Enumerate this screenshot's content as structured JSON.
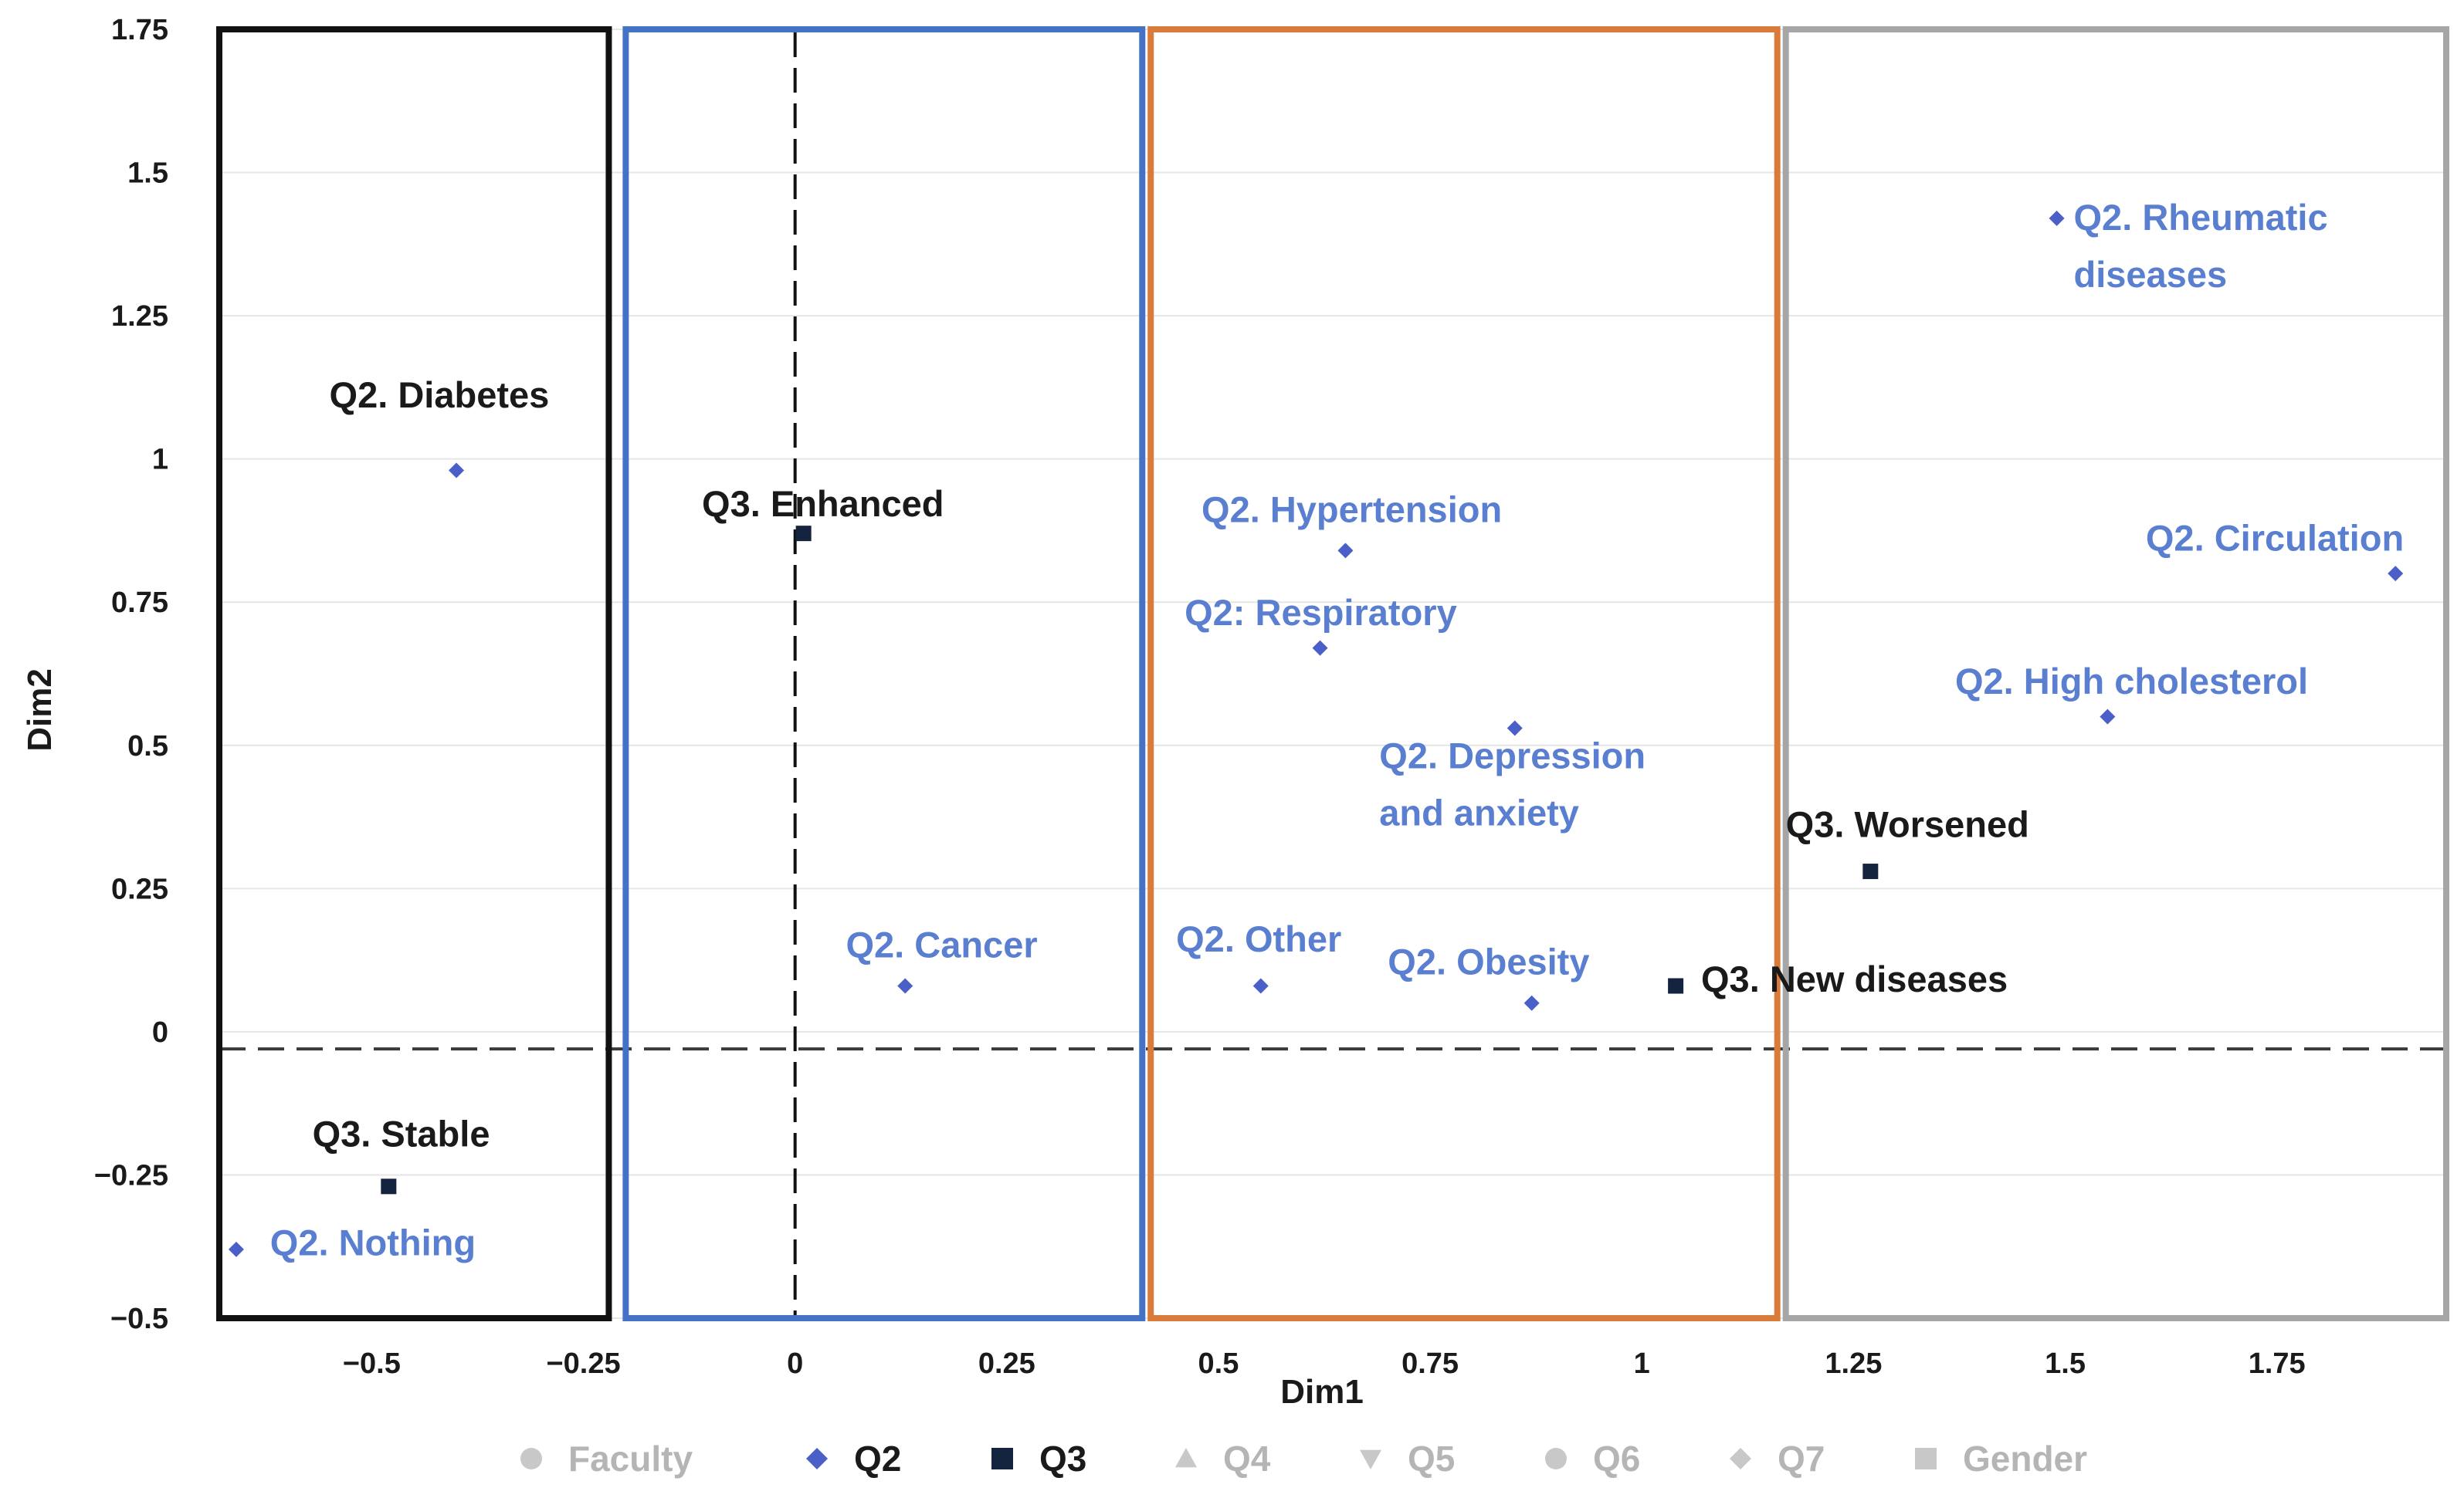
{
  "chart_data": {
    "type": "scatter",
    "title": "",
    "xlabel": "Dim1",
    "ylabel": "Dim2",
    "xlim": [
      -0.68,
      1.95
    ],
    "ylim": [
      -0.5,
      1.75
    ],
    "x_ticks": [
      {
        "value": -0.5,
        "label": "−0.5"
      },
      {
        "value": -0.25,
        "label": "−0.25"
      },
      {
        "value": 0,
        "label": "0"
      },
      {
        "value": 0.25,
        "label": "0.25"
      },
      {
        "value": 0.5,
        "label": "0.5"
      },
      {
        "value": 0.75,
        "label": "0.75"
      },
      {
        "value": 1,
        "label": "1"
      },
      {
        "value": 1.25,
        "label": "1.25"
      },
      {
        "value": 1.5,
        "label": "1.5"
      },
      {
        "value": 1.75,
        "label": "1.75"
      }
    ],
    "y_ticks": [
      {
        "value": 1.75,
        "label": "1.75"
      },
      {
        "value": 1.5,
        "label": "1.5"
      },
      {
        "value": 1.25,
        "label": "1.25"
      },
      {
        "value": 1,
        "label": "1"
      },
      {
        "value": 0.75,
        "label": "0.75"
      },
      {
        "value": 0.5,
        "label": "0.5"
      },
      {
        "value": 0.25,
        "label": "0.25"
      },
      {
        "value": 0,
        "label": "0"
      },
      {
        "value": -0.25,
        "label": "−0.25"
      },
      {
        "value": -0.5,
        "label": "−0.5"
      }
    ],
    "reference_lines": {
      "x": 0,
      "y": -0.03
    },
    "regions": [
      {
        "name": "cluster-1",
        "x_range": [
          -0.68,
          -0.22
        ],
        "color": "#111111"
      },
      {
        "name": "cluster-2",
        "x_range": [
          -0.2,
          0.41
        ],
        "color": "#4472c4"
      },
      {
        "name": "cluster-3",
        "x_range": [
          0.42,
          1.16
        ],
        "color": "#d97b3a"
      },
      {
        "name": "cluster-4",
        "x_range": [
          1.17,
          1.95
        ],
        "color": "#a6a6a6"
      }
    ],
    "series": [
      {
        "name": "Q2",
        "marker": "diamond",
        "color": "#4a5fc8",
        "points": [
          {
            "x": -0.4,
            "y": 0.98,
            "label": [
              "Q2. Diabetes"
            ],
            "label_color": "#1a1a1a",
            "anchor": "start",
            "dx": -0.15,
            "dy": 0.11
          },
          {
            "x": 0.13,
            "y": 0.08,
            "label": [
              "Q2. Cancer"
            ],
            "label_color": "#5a7fd0",
            "anchor": "start",
            "dx": -0.07,
            "dy": 0.05
          },
          {
            "x": 0.55,
            "y": 0.08,
            "label": [
              "Q2. Other"
            ],
            "label_color": "#5a7fd0",
            "anchor": "start",
            "dx": -0.1,
            "dy": 0.06
          },
          {
            "x": 0.65,
            "y": 0.84,
            "label": [
              "Q2. Hypertension"
            ],
            "label_color": "#5a7fd0",
            "anchor": "start",
            "dx": -0.17,
            "dy": 0.05
          },
          {
            "x": 0.62,
            "y": 0.67,
            "label": [
              "Q2: Respiratory"
            ],
            "label_color": "#5a7fd0",
            "anchor": "start",
            "dx": -0.16,
            "dy": 0.04
          },
          {
            "x": 0.85,
            "y": 0.53,
            "label": [
              "Q2. Depression",
              "and anxiety"
            ],
            "label_color": "#5a7fd0",
            "anchor": "start",
            "dx": -0.16,
            "dy": -0.07
          },
          {
            "x": 0.87,
            "y": 0.05,
            "label": [
              "Q2. Obesity"
            ],
            "label_color": "#5a7fd0",
            "anchor": "start",
            "dx": -0.17,
            "dy": 0.05
          },
          {
            "x": -0.66,
            "y": -0.38,
            "label": [
              "Q2. Nothing"
            ],
            "label_color": "#5a7fd0",
            "anchor": "start",
            "dx": 0.04,
            "dy": -0.01
          },
          {
            "x": 1.49,
            "y": 1.42,
            "label": [
              "Q2. Rheumatic",
              "diseases"
            ],
            "label_color": "#5a7fd0",
            "anchor": "start",
            "dx": 0.02,
            "dy": -0.02
          },
          {
            "x": 1.89,
            "y": 0.8,
            "label": [
              "Q2. Circulation"
            ],
            "label_color": "#5a7fd0",
            "anchor": "end",
            "dx": 0.01,
            "dy": 0.04
          },
          {
            "x": 1.55,
            "y": 0.55,
            "label": [
              "Q2. High cholesterol"
            ],
            "label_color": "#5a7fd0",
            "anchor": "start",
            "dx": -0.18,
            "dy": 0.04
          }
        ]
      },
      {
        "name": "Q3",
        "marker": "square",
        "color": "#14243e",
        "points": [
          {
            "x": 0.01,
            "y": 0.87,
            "label": [
              "Q3. Enhanced"
            ],
            "label_color": "#1a1a1a",
            "anchor": "start",
            "dx": -0.12,
            "dy": 0.03
          },
          {
            "x": -0.48,
            "y": -0.27,
            "label": [
              "Q3. Stable"
            ],
            "label_color": "#1a1a1a",
            "anchor": "start",
            "dx": -0.09,
            "dy": 0.07
          },
          {
            "x": 1.27,
            "y": 0.28,
            "label": [
              "Q3. Worsened"
            ],
            "label_color": "#1a1a1a",
            "anchor": "start",
            "dx": -0.1,
            "dy": 0.06
          },
          {
            "x": 1.04,
            "y": 0.08,
            "label": [
              "Q3. New diseases"
            ],
            "label_color": "#1a1a1a",
            "anchor": "start",
            "dx": 0.03,
            "dy": -0.01
          }
        ]
      }
    ],
    "legend": {
      "placement": "bottom",
      "items": [
        {
          "label": "Faculty",
          "marker": "circle",
          "active": false
        },
        {
          "label": "Q2",
          "marker": "diamond",
          "active": true
        },
        {
          "label": "Q3",
          "marker": "square",
          "active": true
        },
        {
          "label": "Q4",
          "marker": "triangle-up",
          "active": false
        },
        {
          "label": "Q5",
          "marker": "triangle-down",
          "active": false
        },
        {
          "label": "Q6",
          "marker": "circle",
          "active": false
        },
        {
          "label": "Q7",
          "marker": "diamond",
          "active": false
        },
        {
          "label": "Gender",
          "marker": "square",
          "active": false
        }
      ]
    }
  }
}
